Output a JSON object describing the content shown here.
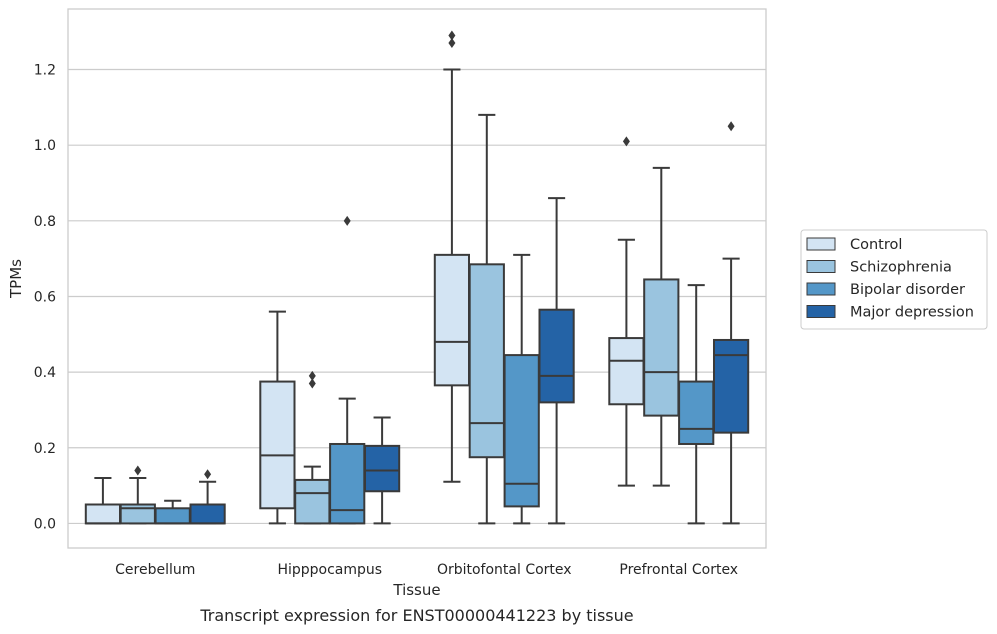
{
  "caption": "Transcript expression for ENST00000441223 by tissue",
  "chart_data": {
    "type": "box",
    "xlabel": "Tissue",
    "ylabel": "TPMs",
    "ylim": [
      -0.065,
      1.36
    ],
    "yticks": [
      0.0,
      0.2,
      0.4,
      0.6,
      0.8,
      1.0,
      1.2
    ],
    "ytick_labels": [
      "0.0",
      "0.2",
      "0.4",
      "0.6",
      "0.8",
      "1.0",
      "1.2"
    ],
    "grid": "horizontal",
    "legend_placement": "right",
    "categories": [
      "Cerebellum",
      "Hipppocampus",
      "Orbitofontal Cortex",
      "Prefrontal Cortex"
    ],
    "series": [
      {
        "name": "Control",
        "color": "#d3e4f3",
        "boxes": [
          {
            "whisker_low": 0.0,
            "q1": 0.0,
            "median": 0.0,
            "q3": 0.05,
            "whisker_high": 0.12,
            "outliers": []
          },
          {
            "whisker_low": 0.0,
            "q1": 0.04,
            "median": 0.18,
            "q3": 0.375,
            "whisker_high": 0.56,
            "outliers": []
          },
          {
            "whisker_low": 0.11,
            "q1": 0.365,
            "median": 0.48,
            "q3": 0.71,
            "whisker_high": 1.2,
            "outliers": [
              1.27,
              1.29
            ]
          },
          {
            "whisker_low": 0.1,
            "q1": 0.315,
            "median": 0.43,
            "q3": 0.49,
            "whisker_high": 0.75,
            "outliers": [
              1.01
            ]
          }
        ]
      },
      {
        "name": "Schizophrenia",
        "color": "#9ac4df",
        "boxes": [
          {
            "whisker_low": 0.0,
            "q1": 0.0,
            "median": 0.04,
            "q3": 0.05,
            "whisker_high": 0.12,
            "outliers": [
              0.14
            ]
          },
          {
            "whisker_low": 0.0,
            "q1": 0.0,
            "median": 0.08,
            "q3": 0.115,
            "whisker_high": 0.15,
            "outliers": [
              0.37,
              0.39
            ]
          },
          {
            "whisker_low": 0.0,
            "q1": 0.175,
            "median": 0.265,
            "q3": 0.685,
            "whisker_high": 1.08,
            "outliers": []
          },
          {
            "whisker_low": 0.1,
            "q1": 0.285,
            "median": 0.4,
            "q3": 0.645,
            "whisker_high": 0.94,
            "outliers": []
          }
        ]
      },
      {
        "name": "Bipolar disorder",
        "color": "#5497c8",
        "boxes": [
          {
            "whisker_low": 0.0,
            "q1": 0.0,
            "median": 0.0,
            "q3": 0.04,
            "whisker_high": 0.06,
            "outliers": []
          },
          {
            "whisker_low": 0.0,
            "q1": 0.0,
            "median": 0.035,
            "q3": 0.21,
            "whisker_high": 0.33,
            "outliers": [
              0.8
            ]
          },
          {
            "whisker_low": 0.0,
            "q1": 0.045,
            "median": 0.105,
            "q3": 0.445,
            "whisker_high": 0.71,
            "outliers": []
          },
          {
            "whisker_low": 0.0,
            "q1": 0.21,
            "median": 0.25,
            "q3": 0.375,
            "whisker_high": 0.63,
            "outliers": []
          }
        ]
      },
      {
        "name": "Major depression",
        "color": "#2463a6",
        "boxes": [
          {
            "whisker_low": 0.0,
            "q1": 0.0,
            "median": 0.0,
            "q3": 0.05,
            "whisker_high": 0.11,
            "outliers": [
              0.13
            ]
          },
          {
            "whisker_low": 0.0,
            "q1": 0.085,
            "median": 0.14,
            "q3": 0.205,
            "whisker_high": 0.28,
            "outliers": []
          },
          {
            "whisker_low": 0.0,
            "q1": 0.32,
            "median": 0.39,
            "q3": 0.565,
            "whisker_high": 0.86,
            "outliers": []
          },
          {
            "whisker_low": 0.0,
            "q1": 0.24,
            "median": 0.445,
            "q3": 0.485,
            "whisker_high": 0.7,
            "outliers": [
              1.05
            ]
          }
        ]
      }
    ]
  }
}
